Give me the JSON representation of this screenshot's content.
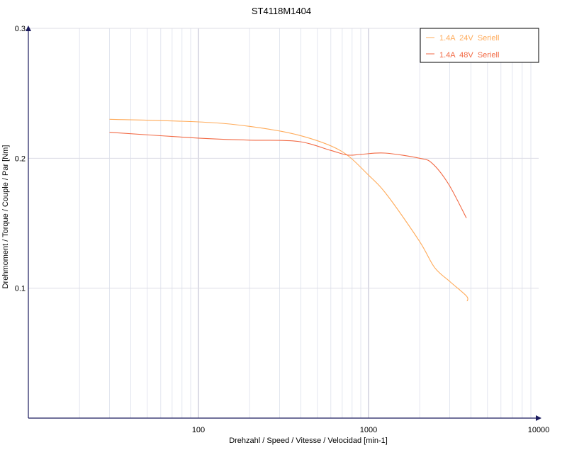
{
  "chart_data": {
    "type": "line",
    "title": "ST4118M1404",
    "xlabel": "Drehzahl / Speed / Vitesse / Velocidad [min-1]",
    "ylabel": "Drehmoment / Torque / Couple / Par [Nm]",
    "x_scale": "log",
    "xlim": [
      10,
      10000
    ],
    "ylim": [
      0,
      0.3
    ],
    "x_ticks": [
      "100",
      "1000",
      "10000"
    ],
    "x_tick_values": [
      100,
      1000,
      10000
    ],
    "y_ticks": [
      "0.1",
      "0.2",
      "0.3"
    ],
    "y_tick_values": [
      0.1,
      0.2,
      0.3
    ],
    "grid": true,
    "legend_position": "top-right",
    "series": [
      {
        "name": "1.4A  24V  Seriell",
        "color": "#ffab5a",
        "x": [
          30,
          100,
          196,
          383,
          681,
          1000,
          1297,
          1995,
          2442,
          3013,
          3760,
          3800
        ],
        "y": [
          0.23,
          0.228,
          0.2247,
          0.218,
          0.206,
          0.187,
          0.171,
          0.136,
          0.116,
          0.105,
          0.094,
          0.09
        ]
      },
      {
        "name": "1.4A  48V  Seriell",
        "color": "#f26a45",
        "x": [
          30,
          100,
          196,
          383,
          601,
          750,
          905,
          1247,
          1995,
          2371,
          2957,
          3760
        ],
        "y": [
          0.22,
          0.2155,
          0.214,
          0.213,
          0.206,
          0.2025,
          0.203,
          0.204,
          0.2,
          0.196,
          0.18,
          0.154
        ]
      }
    ]
  }
}
